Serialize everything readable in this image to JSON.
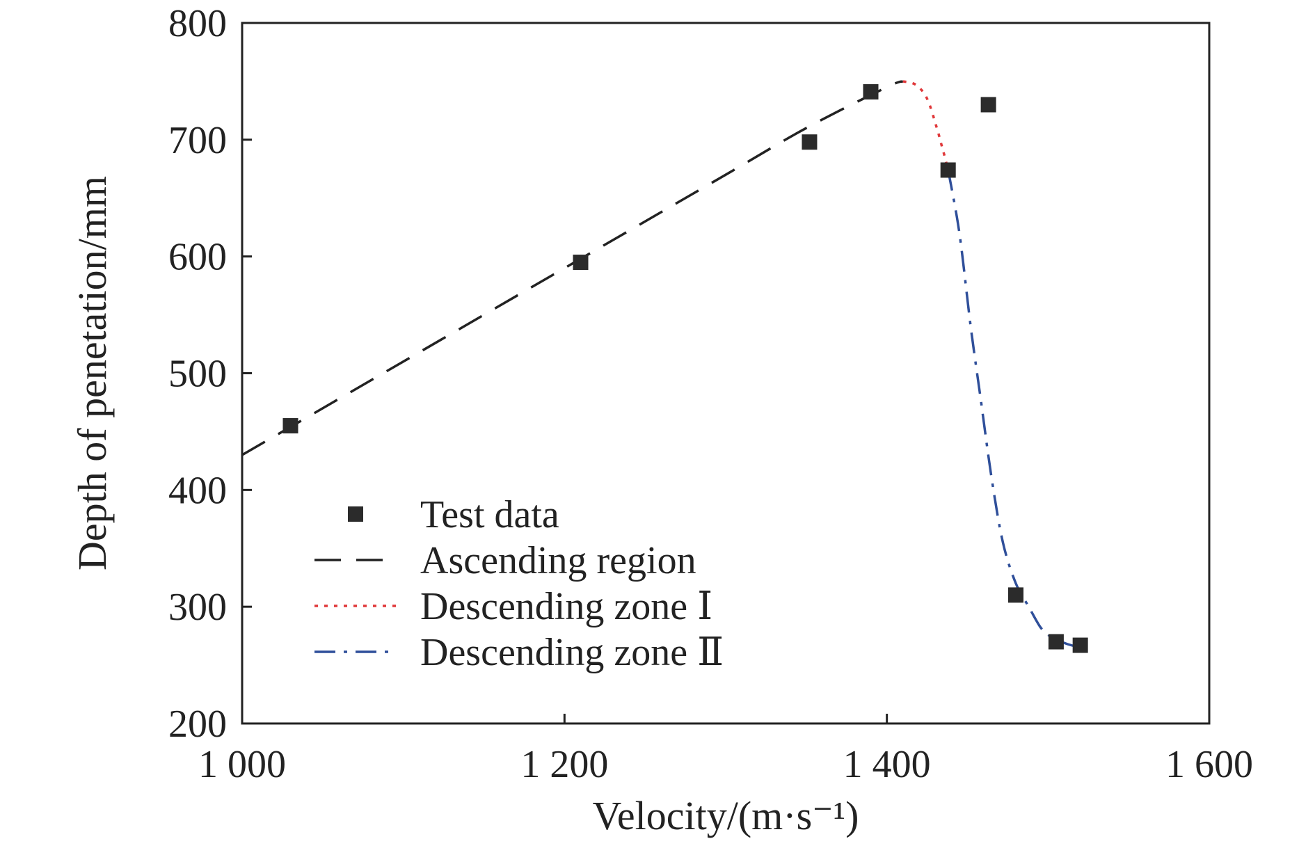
{
  "chart_data": {
    "type": "scatter",
    "xlabel": "Velocity/(m·s⁻¹)",
    "ylabel": "Depth of penetation/mm",
    "xlim": [
      1000,
      1600
    ],
    "ylim": [
      200,
      800
    ],
    "xticks": [
      {
        "value": 1000,
        "label": "1 000"
      },
      {
        "value": 1200,
        "label": "1 200"
      },
      {
        "value": 1400,
        "label": "1 400"
      },
      {
        "value": 1600,
        "label": "1 600"
      }
    ],
    "yticks": [
      {
        "value": 200,
        "label": "200"
      },
      {
        "value": 300,
        "label": "300"
      },
      {
        "value": 400,
        "label": "400"
      },
      {
        "value": 500,
        "label": "500"
      },
      {
        "value": 600,
        "label": "600"
      },
      {
        "value": 700,
        "label": "700"
      },
      {
        "value": 800,
        "label": "800"
      }
    ],
    "grid": false,
    "legend_position": "lower-left",
    "series": [
      {
        "name": "Test data",
        "kind": "markers",
        "marker": "square",
        "color": "#2b2b2b",
        "x": [
          1030,
          1210,
          1352,
          1390,
          1438,
          1463,
          1480,
          1505,
          1520
        ],
        "y": [
          455,
          595,
          698,
          741,
          674,
          730,
          310,
          270,
          267
        ]
      },
      {
        "name": "Ascending region",
        "kind": "line",
        "style": "dashed",
        "color": "#222222",
        "x": [
          1000,
          1100,
          1200,
          1300,
          1350,
          1400,
          1410
        ],
        "y": [
          430,
          510,
          590,
          670,
          710,
          745,
          750
        ]
      },
      {
        "name": "Descending zone Ⅰ",
        "kind": "line",
        "style": "dotted",
        "color": "#e0383a",
        "x": [
          1410,
          1418,
          1425,
          1431,
          1434,
          1436,
          1438
        ],
        "y": [
          750,
          747,
          735,
          710,
          695,
          685,
          674
        ]
      },
      {
        "name": "Descending zone Ⅱ",
        "kind": "line",
        "style": "dashdot",
        "color": "#2f4f9a",
        "x": [
          1438,
          1445,
          1452,
          1458,
          1465,
          1472,
          1480,
          1488,
          1495,
          1500,
          1505,
          1512,
          1520
        ],
        "y": [
          674,
          620,
          540,
          480,
          410,
          355,
          320,
          300,
          283,
          276,
          272,
          268,
          265
        ]
      }
    ]
  }
}
